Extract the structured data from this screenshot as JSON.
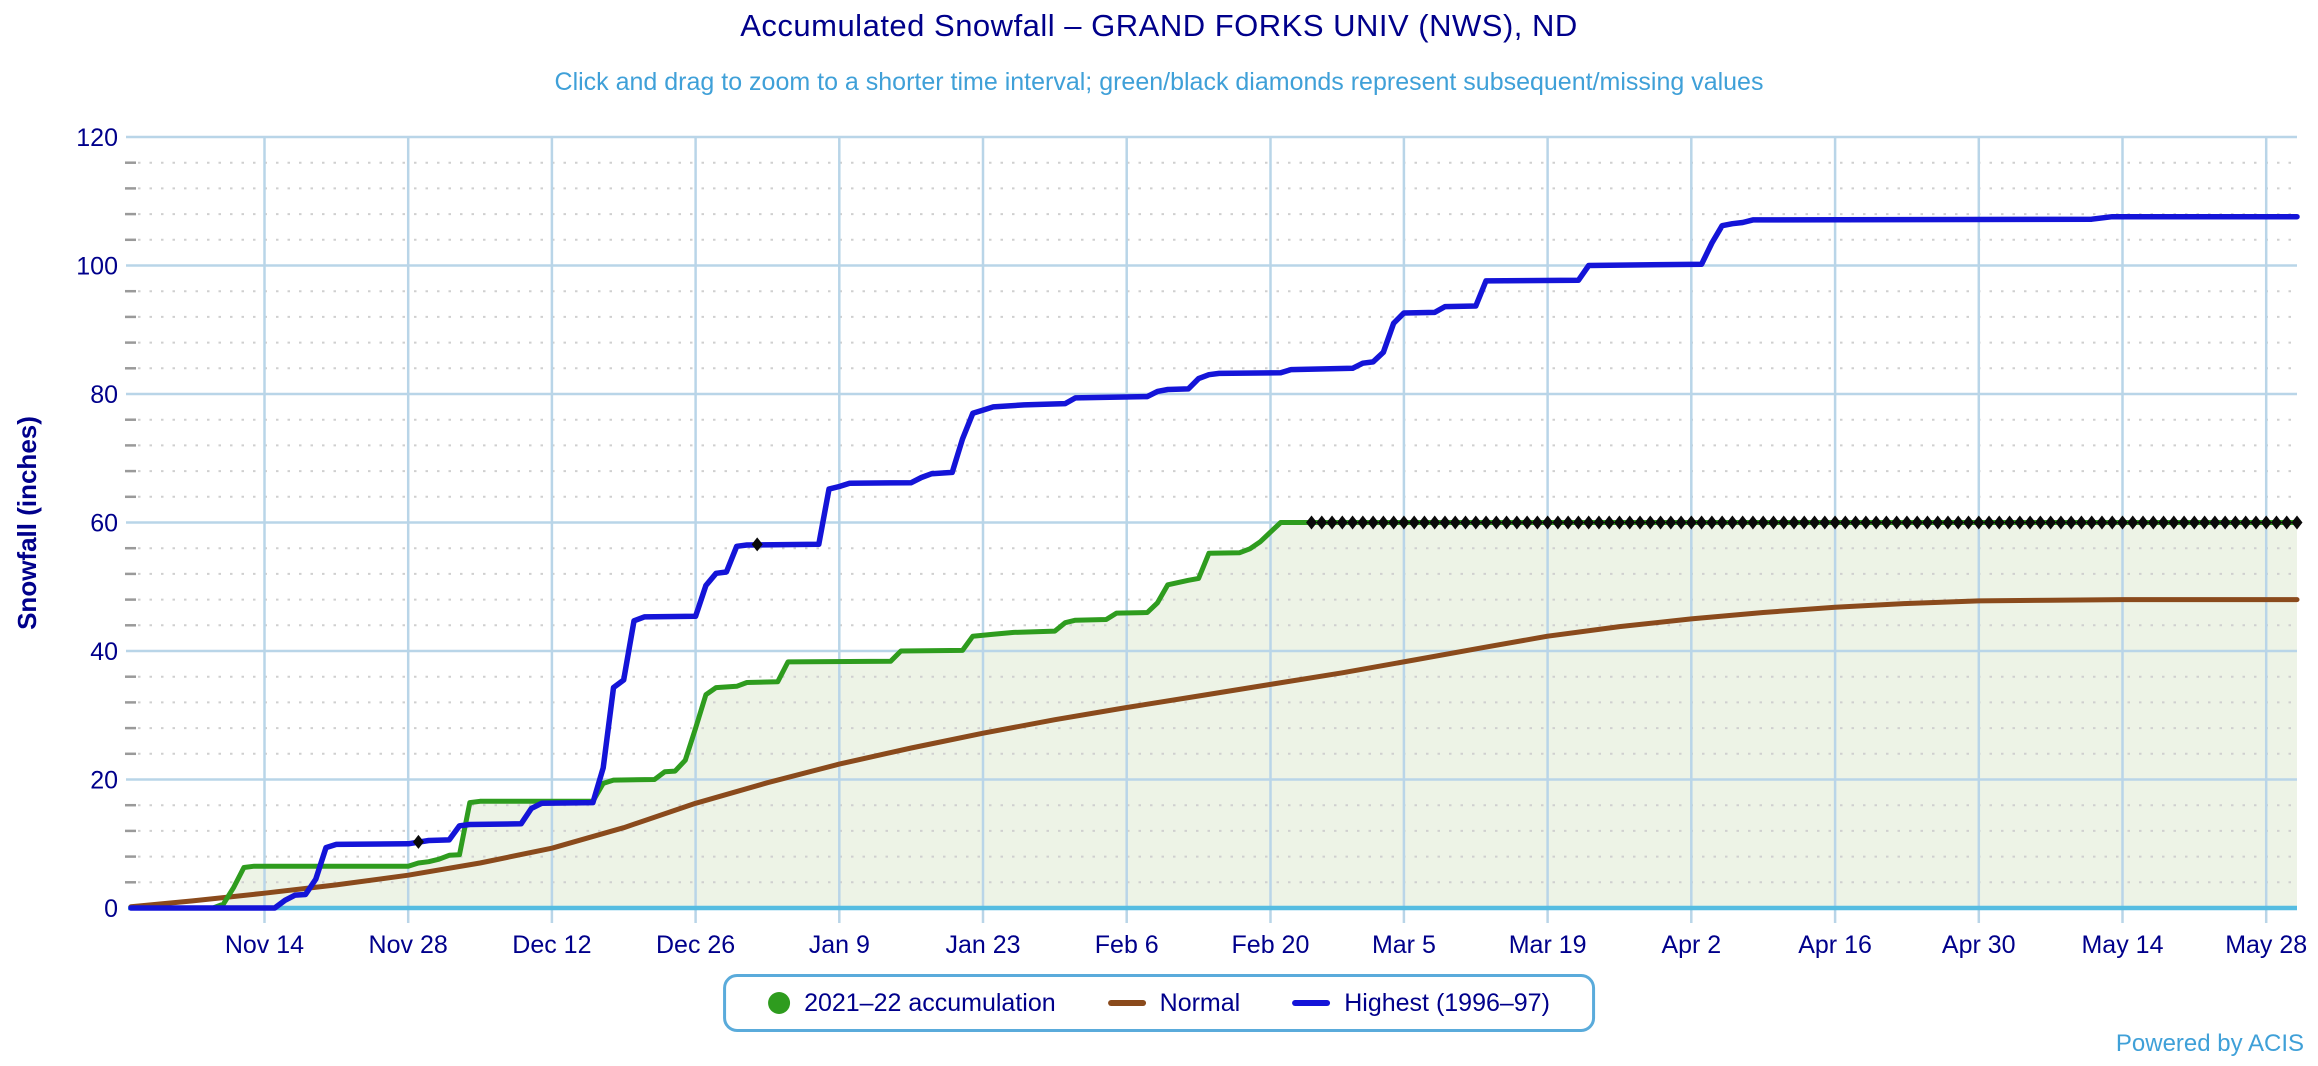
{
  "page": {
    "title": "Accumulated Snowfall – GRAND FORKS UNIV (NWS), ND",
    "subtitle": "Click and drag to zoom to a shorter time interval; green/black diamonds represent subsequent/missing values",
    "powered_by": "Powered by ACIS"
  },
  "legend": {
    "items": [
      {
        "label": "2021–22 accumulation",
        "marker": "green-circle",
        "color": "#2e9c1e"
      },
      {
        "label": "Normal",
        "marker": "brown-line",
        "color": "#8a4a1c"
      },
      {
        "label": "Highest (1996–97)",
        "marker": "blue-line",
        "color": "#1414d8"
      }
    ]
  },
  "colors": {
    "title_text": "#00008b",
    "subtitle_text": "#3fa0d8",
    "axis_text": "#00008b",
    "major_grid": "#b9d5e8",
    "minor_grid": "#cfcfcf",
    "minor_tick": "#9a9a9a",
    "zero_axis_line": "#55bce1",
    "accumulation_green": "#2e9c1e",
    "area_fill": "#edf3e6",
    "normal_brown": "#8a4a1c",
    "highest_blue": "#1414d8",
    "missing_diamond": "#0a0a0a",
    "legend_border": "#5aabdb"
  },
  "chart_data": {
    "type": "line",
    "title": "Accumulated Snowfall – GRAND FORKS UNIV (NWS), ND",
    "ylabel": "Snowfall (inches)",
    "ylim": [
      0,
      120
    ],
    "y_ticks": [
      0,
      20,
      40,
      60,
      80,
      100,
      120
    ],
    "y_minor_step": 4,
    "x_range": [
      "Nov 1",
      "May 31"
    ],
    "x_tick_labels": [
      "Nov 14",
      "Nov 28",
      "Dec 12",
      "Dec 26",
      "Jan 9",
      "Jan 23",
      "Feb 6",
      "Feb 20",
      "Mar 5",
      "Mar 19",
      "Apr 2",
      "Apr 16",
      "Apr 30",
      "May 14",
      "May 28"
    ],
    "grid": {
      "x_major": true,
      "y_major": true,
      "y_minor_dotted": true
    },
    "legend_position": "bottom-center",
    "series": [
      {
        "name": "2021–22 accumulation",
        "color": "#2e9c1e",
        "style": "solid",
        "area_fill": true,
        "points": [
          [
            "Nov 1",
            0
          ],
          [
            "Nov 9",
            0
          ],
          [
            "Nov 10",
            0.6
          ],
          [
            "Nov 11",
            3.2
          ],
          [
            "Nov 12",
            6.3
          ],
          [
            "Nov 13",
            6.5
          ],
          [
            "Nov 28",
            6.5
          ],
          [
            "Nov 29",
            7.0
          ],
          [
            "Nov 30",
            7.2
          ],
          [
            "Dec 1",
            7.6
          ],
          [
            "Dec 2",
            8.2
          ],
          [
            "Dec 3",
            8.3
          ],
          [
            "Dec 4",
            16.4
          ],
          [
            "Dec 5",
            16.6
          ],
          [
            "Dec 16",
            16.6
          ],
          [
            "Dec 17",
            19.4
          ],
          [
            "Dec 18",
            19.9
          ],
          [
            "Dec 22",
            20.0
          ],
          [
            "Dec 23",
            21.2
          ],
          [
            "Dec 24",
            21.3
          ],
          [
            "Dec 25",
            23.0
          ],
          [
            "Dec 26",
            28.0
          ],
          [
            "Dec 27",
            33.2
          ],
          [
            "Dec 28",
            34.3
          ],
          [
            "Dec 30",
            34.5
          ],
          [
            "Dec 31",
            35.1
          ],
          [
            "Jan 3",
            35.2
          ],
          [
            "Jan 4",
            38.3
          ],
          [
            "Jan 14",
            38.4
          ],
          [
            "Jan 15",
            40.0
          ],
          [
            "Jan 21",
            40.1
          ],
          [
            "Jan 22",
            42.3
          ],
          [
            "Jan 24",
            42.6
          ],
          [
            "Jan 26",
            42.9
          ],
          [
            "Jan 30",
            43.1
          ],
          [
            "Jan 31",
            44.4
          ],
          [
            "Feb 1",
            44.8
          ],
          [
            "Feb 4",
            44.9
          ],
          [
            "Feb 5",
            45.9
          ],
          [
            "Feb 8",
            46.0
          ],
          [
            "Feb 9",
            47.5
          ],
          [
            "Feb 10",
            50.3
          ],
          [
            "Feb 12",
            51.0
          ],
          [
            "Feb 13",
            51.3
          ],
          [
            "Feb 14",
            55.2
          ],
          [
            "Feb 17",
            55.3
          ],
          [
            "Feb 18",
            55.9
          ],
          [
            "Feb 19",
            57.0
          ],
          [
            "Feb 20",
            58.5
          ],
          [
            "Feb 21",
            60.0
          ],
          [
            "Feb 23",
            60.0
          ]
        ],
        "missing_period": {
          "start": "Feb 24",
          "end": "May 31",
          "value": 60.0,
          "marker": "black-diamond-daily"
        }
      },
      {
        "name": "Normal",
        "color": "#8a4a1c",
        "style": "solid",
        "area_fill": false,
        "points": [
          [
            "Nov 1",
            0.2
          ],
          [
            "Nov 7",
            1.1
          ],
          [
            "Nov 14",
            2.3
          ],
          [
            "Nov 21",
            3.6
          ],
          [
            "Nov 28",
            5.1
          ],
          [
            "Dec 5",
            7.0
          ],
          [
            "Dec 12",
            9.3
          ],
          [
            "Dec 19",
            12.5
          ],
          [
            "Dec 26",
            16.3
          ],
          [
            "Jan 2",
            19.5
          ],
          [
            "Jan 9",
            22.4
          ],
          [
            "Jan 16",
            24.9
          ],
          [
            "Jan 23",
            27.2
          ],
          [
            "Jan 30",
            29.3
          ],
          [
            "Feb 6",
            31.2
          ],
          [
            "Feb 13",
            33.0
          ],
          [
            "Feb 20",
            34.8
          ],
          [
            "Feb 27",
            36.6
          ],
          [
            "Mar 6",
            38.6
          ],
          [
            "Mar 13",
            40.6
          ],
          [
            "Mar 19",
            42.3
          ],
          [
            "Mar 26",
            43.8
          ],
          [
            "Apr 2",
            45.0
          ],
          [
            "Apr 9",
            46.0
          ],
          [
            "Apr 16",
            46.8
          ],
          [
            "Apr 23",
            47.4
          ],
          [
            "Apr 30",
            47.8
          ],
          [
            "May 7",
            47.9
          ],
          [
            "May 14",
            48.0
          ],
          [
            "May 31",
            48.0
          ]
        ]
      },
      {
        "name": "Highest (1996–97)",
        "color": "#1414d8",
        "style": "solid",
        "area_fill": false,
        "points": [
          [
            "Nov 1",
            0
          ],
          [
            "Nov 15",
            0
          ],
          [
            "Nov 16",
            1.2
          ],
          [
            "Nov 17",
            2.0
          ],
          [
            "Nov 18",
            2.1
          ],
          [
            "Nov 19",
            4.5
          ],
          [
            "Nov 20",
            9.4
          ],
          [
            "Nov 21",
            9.9
          ],
          [
            "Nov 28",
            10.0
          ],
          [
            "Nov 30",
            10.5
          ],
          [
            "Dec 2",
            10.6
          ],
          [
            "Dec 3",
            12.8
          ],
          [
            "Dec 4",
            13.0
          ],
          [
            "Dec 9",
            13.1
          ],
          [
            "Dec 10",
            15.5
          ],
          [
            "Dec 11",
            16.3
          ],
          [
            "Dec 16",
            16.4
          ],
          [
            "Dec 17",
            21.8
          ],
          [
            "Dec 18",
            34.3
          ],
          [
            "Dec 19",
            35.5
          ],
          [
            "Dec 20",
            44.7
          ],
          [
            "Dec 21",
            45.3
          ],
          [
            "Dec 26",
            45.4
          ],
          [
            "Dec 27",
            50.2
          ],
          [
            "Dec 28",
            52.1
          ],
          [
            "Dec 29",
            52.3
          ],
          [
            "Dec 30",
            56.3
          ],
          [
            "Dec 31",
            56.5
          ],
          [
            "Jan 7",
            56.6
          ],
          [
            "Jan 8",
            65.2
          ],
          [
            "Jan 9",
            65.6
          ],
          [
            "Jan 10",
            66.1
          ],
          [
            "Jan 16",
            66.2
          ],
          [
            "Jan 17",
            67.0
          ],
          [
            "Jan 18",
            67.6
          ],
          [
            "Jan 20",
            67.8
          ],
          [
            "Jan 21",
            73.0
          ],
          [
            "Jan 22",
            77.0
          ],
          [
            "Jan 23",
            77.5
          ],
          [
            "Jan 24",
            78.0
          ],
          [
            "Jan 27",
            78.3
          ],
          [
            "Jan 31",
            78.5
          ],
          [
            "Feb 1",
            79.4
          ],
          [
            "Feb 8",
            79.6
          ],
          [
            "Feb 9",
            80.4
          ],
          [
            "Feb 10",
            80.7
          ],
          [
            "Feb 12",
            80.8
          ],
          [
            "Feb 13",
            82.4
          ],
          [
            "Feb 14",
            83.0
          ],
          [
            "Feb 15",
            83.2
          ],
          [
            "Feb 21",
            83.3
          ],
          [
            "Feb 22",
            83.8
          ],
          [
            "Feb 28",
            84.0
          ],
          [
            "Mar 1",
            84.8
          ],
          [
            "Mar 2",
            85.0
          ],
          [
            "Mar 3",
            86.5
          ],
          [
            "Mar 4",
            91.0
          ],
          [
            "Mar 5",
            92.6
          ],
          [
            "Mar 8",
            92.7
          ],
          [
            "Mar 9",
            93.6
          ],
          [
            "Mar 12",
            93.7
          ],
          [
            "Mar 13",
            97.6
          ],
          [
            "Mar 22",
            97.7
          ],
          [
            "Mar 23",
            100.0
          ],
          [
            "Apr 3",
            100.2
          ],
          [
            "Apr 4",
            103.5
          ],
          [
            "Apr 5",
            106.2
          ],
          [
            "Apr 6",
            106.5
          ],
          [
            "Apr 7",
            106.7
          ],
          [
            "Apr 8",
            107.1
          ],
          [
            "May 11",
            107.2
          ],
          [
            "May 13",
            107.6
          ],
          [
            "May 31",
            107.6
          ]
        ],
        "missing_days": [
          [
            "Nov 29",
            10.3
          ],
          [
            "Jan 1",
            56.6
          ]
        ]
      }
    ]
  }
}
